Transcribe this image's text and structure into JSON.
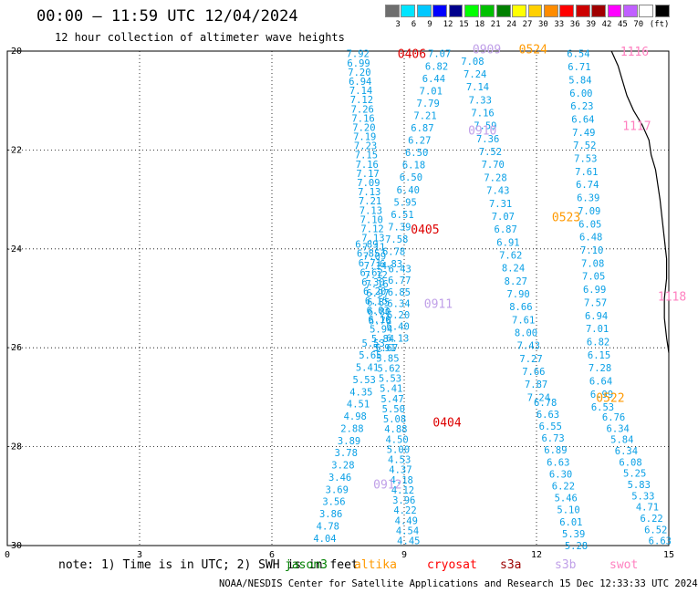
{
  "header": {
    "title": "00:00 – 11:59 UTC 12/04/2024",
    "subtitle": "12 hour collection of altimeter wave heights"
  },
  "colorbar": {
    "colors": [
      "#6e6e6e",
      "#00e5ff",
      "#00c8ff",
      "#0000ff",
      "#00008c",
      "#00ff00",
      "#00c000",
      "#008000",
      "#ffff00",
      "#ffd000",
      "#ff8c00",
      "#ff0000",
      "#cc0000",
      "#a00000",
      "#ff00ff",
      "#c060ff",
      "#ffffff",
      "#000000"
    ],
    "labels": [
      "3",
      "6",
      "9",
      "12",
      "15",
      "18",
      "21",
      "24",
      "27",
      "30",
      "33",
      "36",
      "39",
      "42",
      "45",
      "70",
      "(ft)"
    ]
  },
  "footer": {
    "note": "note: 1) Time is in UTC; 2) SWH is in feet",
    "satellites": [
      {
        "name": "jason3",
        "color": "#008000"
      },
      {
        "name": "altika",
        "color": "#ff9900"
      },
      {
        "name": "cryosat",
        "color": "#ff0000"
      },
      {
        "name": "s3a",
        "color": "#9b0000"
      },
      {
        "name": "s3b",
        "color": "#c0a0e8"
      },
      {
        "name": "swot",
        "color": "#ff80c0"
      }
    ],
    "credit": "NOAA/NESDIS Center for Satellite Applications and Research    15 Dec 12:33:33 UTC 2024"
  },
  "chart_data": {
    "type": "scatter",
    "xlim": [
      0,
      15
    ],
    "ylim": [
      -30,
      -20
    ],
    "x_ticks": [
      "0",
      "3",
      "6",
      "9",
      "12",
      "15"
    ],
    "y_ticks": [
      "-20",
      "-22",
      "-24",
      "-26",
      "-28",
      "-30"
    ],
    "grid": true,
    "passes": [
      {
        "name": "s3a track",
        "color": "#0aa0e6",
        "x_start": 7.95,
        "y_start": -20.05,
        "x_end": 8.45,
        "y_end": -25.45,
        "values": [
          "7.92",
          "6.99",
          "7.20",
          "6.94",
          "7.14",
          "7.12",
          "7.26",
          "7.16",
          "7.20",
          "7.19",
          "7.23",
          "7.15",
          "7.16",
          "7.17",
          "7.09",
          "7.13",
          "7.21",
          "7.13",
          "7.10",
          "7.12",
          "7.13",
          "7.11",
          "7.09",
          "7.14",
          "7.12",
          "7.16",
          "6.97",
          "6.85",
          "6.80",
          "6.76"
        ]
      },
      {
        "name": "cryosat track",
        "color": "#0aa0e6",
        "x_start": 8.15,
        "y_start": -23.9,
        "x_end": 8.55,
        "y_end": -26.0,
        "values": [
          "6.89",
          "6.85",
          "6.71",
          "6.62",
          "6.30",
          "6.20",
          "6.15",
          "6.03",
          "6.10",
          "5.94",
          "5.84",
          "5.91"
        ]
      },
      {
        "name": "jason3 track",
        "color": "#0aa0e6",
        "x_start": 9.8,
        "y_start": -20.05,
        "x_end": 8.7,
        "y_end": -24.3,
        "values": [
          "7.07",
          "6.82",
          "6.44",
          "7.01",
          "7.79",
          "7.21",
          "6.87",
          "6.27",
          "6.50",
          "6.18",
          "6.50",
          "6.40",
          "5.95",
          "6.51",
          "7.39",
          "7.58",
          "6.78",
          "6.83"
        ]
      },
      {
        "name": "jason3 track b",
        "color": "#0aa0e6",
        "x_start": 8.9,
        "y_start": -24.4,
        "x_end": 8.85,
        "y_end": -25.8,
        "values": [
          "6.43",
          "6.77",
          "6.85",
          "6.34",
          "6.20",
          "6.40",
          "6.13"
        ]
      },
      {
        "name": "s3b track",
        "color": "#0aa0e6",
        "x_start": 8.6,
        "y_start": -26.0,
        "x_end": 9.1,
        "y_end": -29.9,
        "values": [
          "5.67",
          "5.85",
          "5.62",
          "5.53",
          "5.41",
          "5.47",
          "5.50",
          "5.08",
          "4.88",
          "4.50",
          "5.00",
          "4.53",
          "4.37",
          "4.18",
          "4.12",
          "3.96",
          "4.22",
          "4.49",
          "4.54",
          "4.45"
        ]
      },
      {
        "name": "swot track",
        "color": "#0aa0e6",
        "x_start": 8.3,
        "y_start": -25.9,
        "x_end": 7.2,
        "y_end": -29.85,
        "values": [
          "5.53",
          "5.65",
          "5.41",
          "5.53",
          "4.35",
          "4.51",
          "4.98",
          "2.88",
          "3.89",
          "3.78",
          "3.28",
          "3.46",
          "3.69",
          "3.56",
          "3.86",
          "4.78",
          "4.04"
        ]
      },
      {
        "name": "altika track",
        "color": "#0aa0e6",
        "x_start": 10.55,
        "y_start": -20.2,
        "x_end": 12.05,
        "y_end": -27.0,
        "values": [
          "7.08",
          "7.24",
          "7.14",
          "7.33",
          "7.16",
          "7.59",
          "7.36",
          "7.52",
          "7.70",
          "7.28",
          "7.43",
          "7.31",
          "7.07",
          "6.87",
          "6.91",
          "7.62",
          "8.24",
          "8.27",
          "7.90",
          "8.66",
          "7.61",
          "8.00",
          "7.43",
          "7.27",
          "7.66",
          "7.87",
          "7.24"
        ]
      },
      {
        "name": "altika track b",
        "color": "#0aa0e6",
        "x_start": 12.2,
        "y_start": -27.1,
        "x_end": 12.9,
        "y_end": -30.0,
        "values": [
          "6.78",
          "6.63",
          "6.55",
          "6.73",
          "6.89",
          "6.63",
          "6.30",
          "6.22",
          "5.46",
          "5.10",
          "6.01",
          "5.39",
          "5.28"
        ]
      },
      {
        "name": "swot track b",
        "color": "#0aa0e6",
        "x_start": 12.95,
        "y_start": -20.05,
        "x_end": 13.5,
        "y_end": -27.2,
        "values": [
          "6.54",
          "6.71",
          "5.84",
          "6.00",
          "6.23",
          "6.64",
          "7.49",
          "7.52",
          "7.53",
          "7.61",
          "6.74",
          "6.39",
          "7.09",
          "6.05",
          "6.48",
          "7.10",
          "7.08",
          "7.05",
          "6.99",
          "7.57",
          "6.94",
          "7.01",
          "6.82",
          "6.15",
          "7.28",
          "6.64",
          "6.99",
          "6.53"
        ]
      },
      {
        "name": "swot track c",
        "color": "#0aa0e6",
        "x_start": 13.75,
        "y_start": -27.4,
        "x_end": 14.8,
        "y_end": -29.9,
        "values": [
          "6.76",
          "6.34",
          "5.84",
          "6.34",
          "6.08",
          "5.25",
          "5.83",
          "5.33",
          "4.71",
          "6.22",
          "6.52",
          "6.63"
        ]
      }
    ],
    "labels": [
      {
        "text": "0406",
        "x": 8.85,
        "y": -20.05,
        "color": "#dd0000"
      },
      {
        "text": "0909",
        "x": 10.55,
        "y": -19.95,
        "color": "#c0a0e8"
      },
      {
        "text": "0524",
        "x": 11.6,
        "y": -19.95,
        "color": "#ff9900"
      },
      {
        "text": "1116",
        "x": 13.9,
        "y": -20.0,
        "color": "#ff80c0"
      },
      {
        "text": "1117",
        "x": 13.95,
        "y": -21.5,
        "color": "#ff80c0"
      },
      {
        "text": "0910",
        "x": 10.45,
        "y": -21.6,
        "color": "#c0a0e8"
      },
      {
        "text": "0523",
        "x": 12.35,
        "y": -23.35,
        "color": "#ff9900"
      },
      {
        "text": "0405",
        "x": 9.15,
        "y": -23.6,
        "color": "#dd0000"
      },
      {
        "text": "1118",
        "x": 14.75,
        "y": -24.95,
        "color": "#ff80c0"
      },
      {
        "text": "0911",
        "x": 9.45,
        "y": -25.1,
        "color": "#c0a0e8"
      },
      {
        "text": "0522",
        "x": 13.35,
        "y": -27.0,
        "color": "#ff9900"
      },
      {
        "text": "0404",
        "x": 9.65,
        "y": -27.5,
        "color": "#dd0000"
      },
      {
        "text": "0912",
        "x": 8.3,
        "y": -28.75,
        "color": "#c0a0e8"
      }
    ],
    "coastline": [
      [
        13.7,
        -20.0
      ],
      [
        13.85,
        -20.3
      ],
      [
        13.95,
        -20.6
      ],
      [
        14.05,
        -20.9
      ],
      [
        14.2,
        -21.2
      ],
      [
        14.4,
        -21.5
      ],
      [
        14.55,
        -21.8
      ],
      [
        14.6,
        -22.1
      ],
      [
        14.7,
        -22.4
      ],
      [
        14.75,
        -22.7
      ],
      [
        14.8,
        -23.0
      ],
      [
        14.85,
        -23.4
      ],
      [
        14.9,
        -23.8
      ],
      [
        14.95,
        -24.2
      ],
      [
        14.95,
        -24.6
      ],
      [
        14.9,
        -25.0
      ],
      [
        14.9,
        -25.4
      ],
      [
        14.95,
        -25.8
      ],
      [
        15.0,
        -26.1
      ]
    ]
  }
}
